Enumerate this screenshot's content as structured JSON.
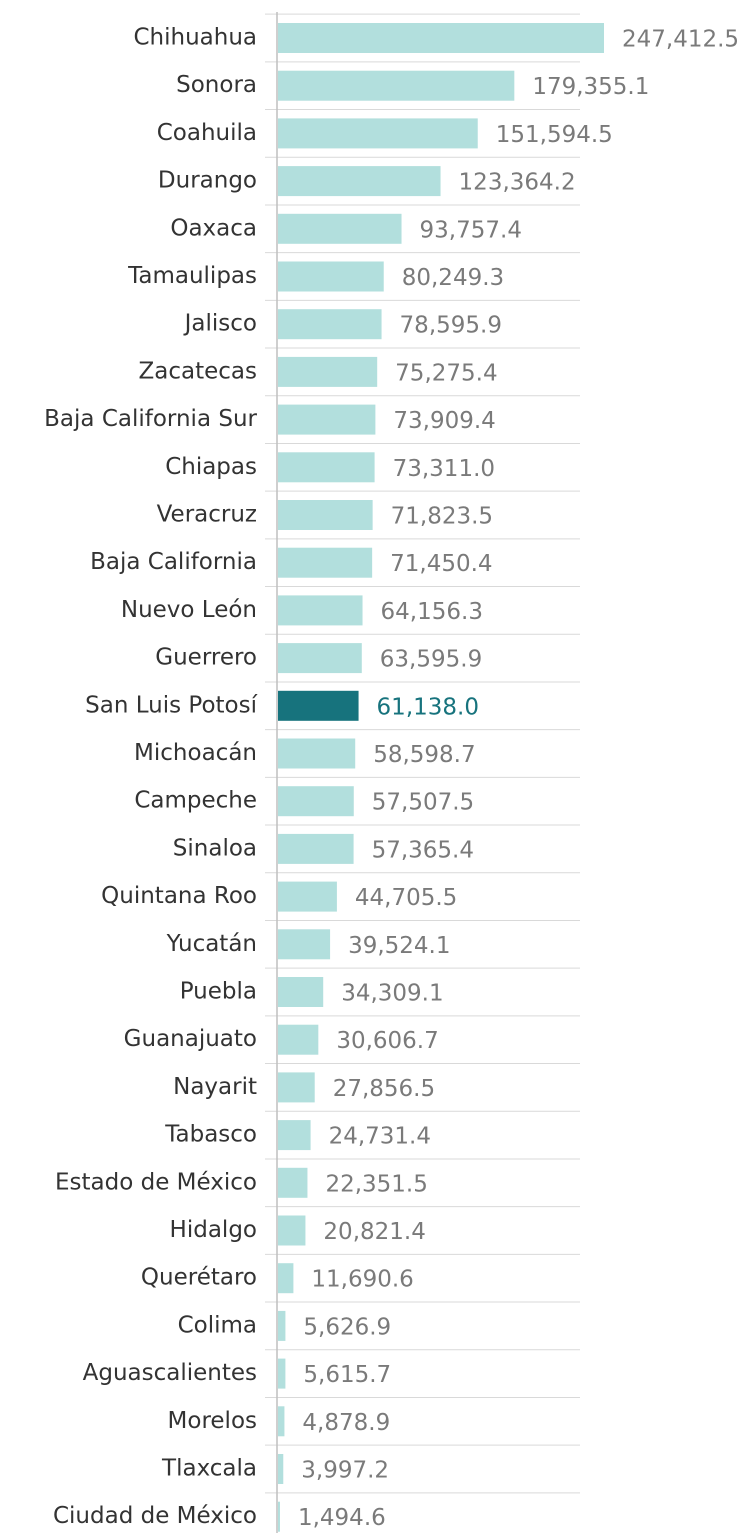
{
  "chart_data": {
    "type": "barh",
    "categories": [
      "Chihuahua",
      "Sonora",
      "Coahuila",
      "Durango",
      "Oaxaca",
      "Tamaulipas",
      "Jalisco",
      "Zacatecas",
      "Baja California Sur",
      "Chiapas",
      "Veracruz",
      "Baja California",
      "Nuevo León",
      "Guerrero",
      "San Luis Potosí",
      "Michoacán",
      "Campeche",
      "Sinaloa",
      "Quintana Roo",
      "Yucatán",
      "Puebla",
      "Guanajuato",
      "Nayarit",
      "Tabasco",
      "Estado de México",
      "Hidalgo",
      "Querétaro",
      "Colima",
      "Aguascalientes",
      "Morelos",
      "Tlaxcala",
      "Ciudad de México"
    ],
    "values": [
      247412.5,
      179355.1,
      151594.5,
      123364.2,
      93757.4,
      80249.3,
      78595.9,
      75275.4,
      73909.4,
      73311.0,
      71823.5,
      71450.4,
      64156.3,
      63595.9,
      61138.0,
      58598.7,
      57507.5,
      57365.4,
      44705.5,
      39524.1,
      34309.1,
      30606.7,
      27856.5,
      24731.4,
      22351.5,
      20821.4,
      11690.6,
      5626.9,
      5615.7,
      4878.9,
      3997.2,
      1494.6
    ],
    "value_labels": [
      "247,412.5",
      "179,355.1",
      "151,594.5",
      "123,364.2",
      "93,757.4",
      "80,249.3",
      "78,595.9",
      "75,275.4",
      "73,909.4",
      "73,311.0",
      "71,823.5",
      "71,450.4",
      "64,156.3",
      "63,595.9",
      "61,138.0",
      "58,598.7",
      "57,507.5",
      "57,365.4",
      "44,705.5",
      "39,524.1",
      "34,309.1",
      "30,606.7",
      "27,856.5",
      "24,731.4",
      "22,351.5",
      "20,821.4",
      "11,690.6",
      "5,626.9",
      "5,615.7",
      "4,878.9",
      "3,997.2",
      "1,494.6"
    ],
    "colors": [
      "#b2dfdd",
      "#b2dfdd",
      "#b2dfdd",
      "#b2dfdd",
      "#b2dfdd",
      "#b2dfdd",
      "#b2dfdd",
      "#b2dfdd",
      "#b2dfdd",
      "#b2dfdd",
      "#b2dfdd",
      "#b2dfdd",
      "#b2dfdd",
      "#b2dfdd",
      "#17737d",
      "#b2dfdd",
      "#b2dfdd",
      "#b2dfdd",
      "#b2dfdd",
      "#b2dfdd",
      "#b2dfdd",
      "#b2dfdd",
      "#b2dfdd",
      "#b2dfdd",
      "#b2dfdd",
      "#b2dfdd",
      "#b2dfdd",
      "#b2dfdd",
      "#b2dfdd",
      "#b2dfdd",
      "#b2dfdd",
      "#b2dfdd"
    ],
    "label_colors": [
      "#7a7a7a",
      "#7a7a7a",
      "#7a7a7a",
      "#7a7a7a",
      "#7a7a7a",
      "#7a7a7a",
      "#7a7a7a",
      "#7a7a7a",
      "#7a7a7a",
      "#7a7a7a",
      "#7a7a7a",
      "#7a7a7a",
      "#7a7a7a",
      "#7a7a7a",
      "#17737d",
      "#7a7a7a",
      "#7a7a7a",
      "#7a7a7a",
      "#7a7a7a",
      "#7a7a7a",
      "#7a7a7a",
      "#7a7a7a",
      "#7a7a7a",
      "#7a7a7a",
      "#7a7a7a",
      "#7a7a7a",
      "#7a7a7a",
      "#7a7a7a",
      "#7a7a7a",
      "#7a7a7a",
      "#7a7a7a",
      "#7a7a7a"
    ]
  }
}
